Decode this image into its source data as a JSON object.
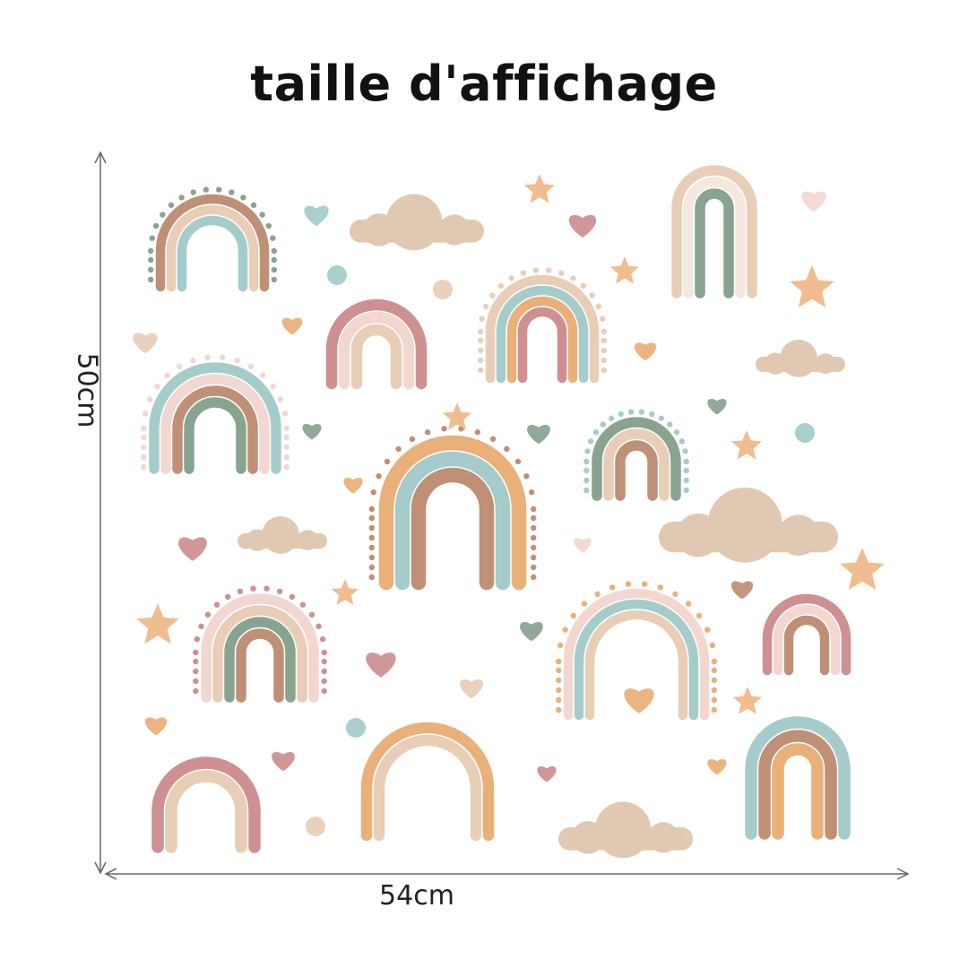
{
  "title": "taille d'affichage",
  "dimensions": {
    "height_label": "50cm",
    "width_label": "54cm"
  },
  "colors": {
    "terracotta": "#b98468",
    "beige": "#e6c9b0",
    "teal": "#9cc7c6",
    "sage": "#7d9a86",
    "pink": "#c98585",
    "blush": "#f1d3cd",
    "peach": "#e8a86c",
    "cloud": "#dcbfa5",
    "star": "#edb27c",
    "arrow": "#666666"
  }
}
